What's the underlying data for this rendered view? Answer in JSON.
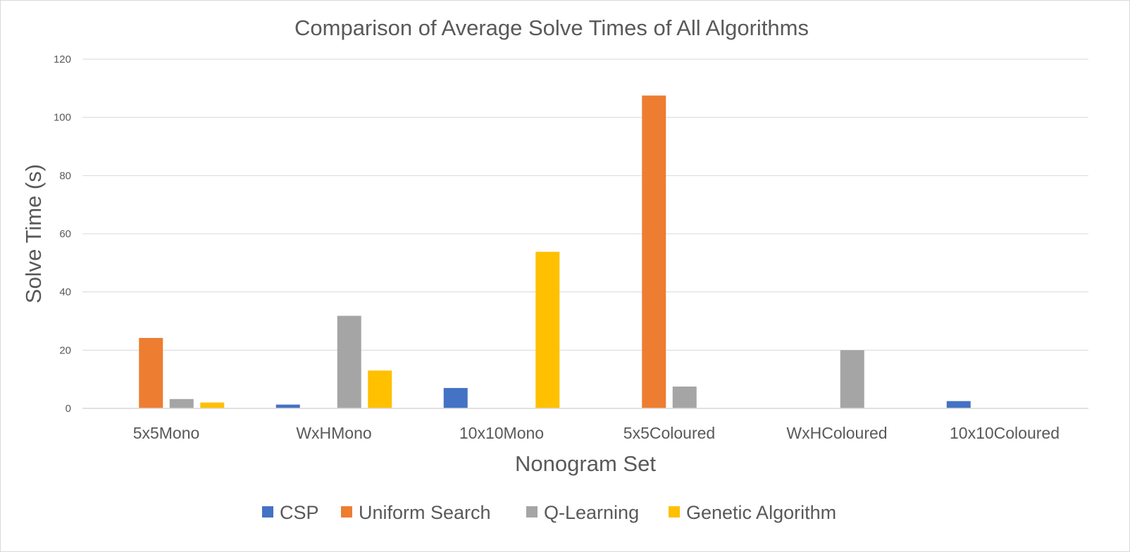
{
  "chart_data": {
    "type": "bar",
    "title": "Comparison of Average Solve Times of All Algorithms",
    "xlabel": "Nonogram Set",
    "ylabel": "Solve Time (s)",
    "categories": [
      "5x5Mono",
      "WxHMono",
      "10x10Mono",
      "5x5Coloured",
      "WxHColoured",
      "10x10Coloured"
    ],
    "series": [
      {
        "name": "CSP",
        "color": "#4472c4",
        "values": [
          0,
          1.3,
          7.0,
          0,
          0,
          2.5
        ]
      },
      {
        "name": "Uniform Search",
        "color": "#ed7d31",
        "values": [
          24.2,
          0,
          0,
          107.5,
          0,
          0
        ]
      },
      {
        "name": "Q-Learning",
        "color": "#a5a5a5",
        "values": [
          3.2,
          31.8,
          0,
          7.5,
          20.0,
          0
        ]
      },
      {
        "name": "Genetic Algorithm",
        "color": "#ffc000",
        "values": [
          2.0,
          13.0,
          53.8,
          0,
          0,
          0
        ]
      }
    ],
    "ylim": [
      0,
      120
    ],
    "yticks": [
      "0",
      "20",
      "40",
      "60",
      "80",
      "100",
      "120"
    ],
    "grid": true,
    "legend_position": "bottom"
  }
}
